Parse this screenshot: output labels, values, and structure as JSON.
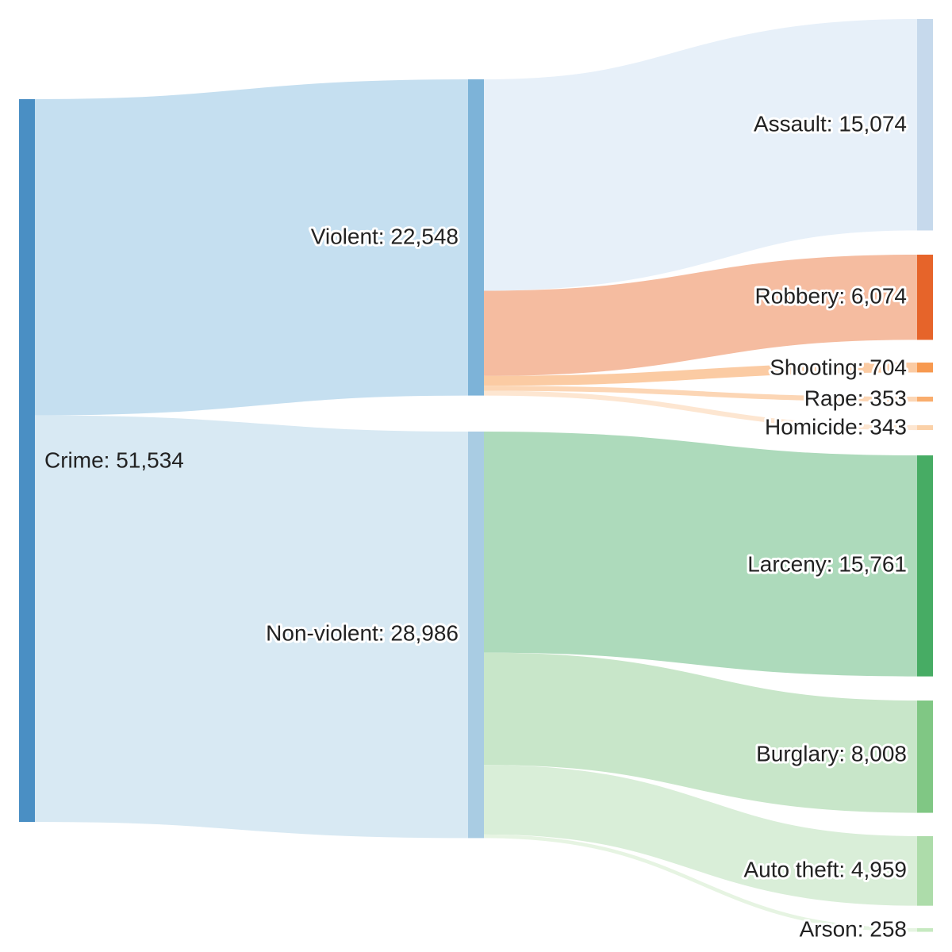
{
  "diagram": {
    "type": "sankey",
    "nodes": [
      {
        "id": "crime",
        "label": "Crime: 51,534",
        "value": 51534,
        "color": "#4a8fc4"
      },
      {
        "id": "violent",
        "label": "Violent: 22,548",
        "value": 22548,
        "color": "#7db3d8"
      },
      {
        "id": "nonviolent",
        "label": "Non-violent: 28,986",
        "value": 28986,
        "color": "#a9cce3"
      },
      {
        "id": "assault",
        "label": "Assault: 15,074",
        "value": 15074,
        "color": "#c6d9ec"
      },
      {
        "id": "robbery",
        "label": "Robbery: 6,074",
        "value": 6074,
        "color": "#e6642a"
      },
      {
        "id": "shooting",
        "label": "Shooting: 704",
        "value": 704,
        "color": "#f7994f"
      },
      {
        "id": "rape",
        "label": "Rape: 353",
        "value": 353,
        "color": "#f9ad6d"
      },
      {
        "id": "homicide",
        "label": "Homicide: 343",
        "value": 343,
        "color": "#fbd1a8"
      },
      {
        "id": "larceny",
        "label": "Larceny: 15,761",
        "value": 15761,
        "color": "#47ac64"
      },
      {
        "id": "burglary",
        "label": "Burglary: 8,008",
        "value": 8008,
        "color": "#80c784"
      },
      {
        "id": "autotheft",
        "label": "Auto theft: 4,959",
        "value": 4959,
        "color": "#addcaa"
      },
      {
        "id": "arson",
        "label": "Arson: 258",
        "value": 258,
        "color": "#c6e9c0"
      }
    ],
    "links": [
      {
        "source": "crime",
        "target": "violent",
        "value": 22548,
        "color": "#c5dff0"
      },
      {
        "source": "crime",
        "target": "nonviolent",
        "value": 28986,
        "color": "#d8e9f3"
      },
      {
        "source": "violent",
        "target": "assault",
        "value": 15074,
        "color": "#e7f0f9"
      },
      {
        "source": "violent",
        "target": "robbery",
        "value": 6074,
        "color": "#f5bca0"
      },
      {
        "source": "violent",
        "target": "shooting",
        "value": 704,
        "color": "#fbcba3"
      },
      {
        "source": "violent",
        "target": "rape",
        "value": 353,
        "color": "#fcd6b5"
      },
      {
        "source": "violent",
        "target": "homicide",
        "value": 343,
        "color": "#fde6d1"
      },
      {
        "source": "nonviolent",
        "target": "larceny",
        "value": 15761,
        "color": "#addabb"
      },
      {
        "source": "nonviolent",
        "target": "burglary",
        "value": 8008,
        "color": "#c8e6c9"
      },
      {
        "source": "nonviolent",
        "target": "autotheft",
        "value": 4959,
        "color": "#d9eed8"
      },
      {
        "source": "nonviolent",
        "target": "arson",
        "value": 258,
        "color": "#e6f4e2"
      }
    ]
  }
}
